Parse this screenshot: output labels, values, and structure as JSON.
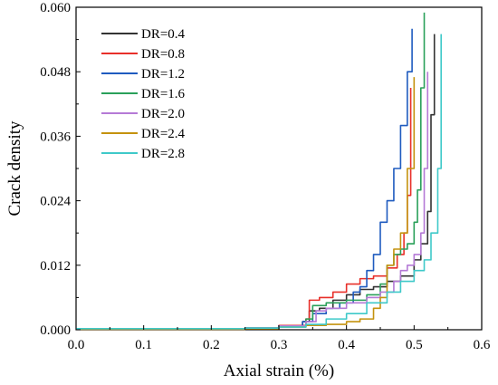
{
  "chart_data": {
    "type": "line",
    "xlabel": "Axial strain (%)",
    "ylabel": "Crack density",
    "xlim": [
      0.0,
      0.6
    ],
    "ylim": [
      0.0,
      0.06
    ],
    "xticks": [
      "0.0",
      "0.1",
      "0.2",
      "0.3",
      "0.4",
      "0.5",
      "0.6"
    ],
    "yticks": [
      "0.000",
      "0.012",
      "0.024",
      "0.036",
      "0.048",
      "0.060"
    ],
    "xtick_values": [
      0.0,
      0.1,
      0.2,
      0.3,
      0.4,
      0.5,
      0.6
    ],
    "ytick_values": [
      0.0,
      0.012,
      0.024,
      0.036,
      0.048,
      0.06
    ],
    "grid": false,
    "legend_position": "top-left",
    "series": [
      {
        "name": "DR=0.4",
        "color": "#333333",
        "x": [
          0.0,
          0.25,
          0.3,
          0.335,
          0.345,
          0.36,
          0.38,
          0.4,
          0.42,
          0.44,
          0.46,
          0.48,
          0.5,
          0.51,
          0.52,
          0.525,
          0.53
        ],
        "y": [
          0.0002,
          0.0003,
          0.0007,
          0.0015,
          0.0035,
          0.004,
          0.0055,
          0.0065,
          0.0075,
          0.008,
          0.009,
          0.01,
          0.013,
          0.016,
          0.022,
          0.04,
          0.055
        ]
      },
      {
        "name": "DR=0.8",
        "color": "#e8302a",
        "x": [
          0.0,
          0.25,
          0.3,
          0.34,
          0.345,
          0.36,
          0.38,
          0.4,
          0.42,
          0.44,
          0.46,
          0.475,
          0.485,
          0.49,
          0.495
        ],
        "y": [
          0.0002,
          0.0003,
          0.0008,
          0.002,
          0.0055,
          0.006,
          0.007,
          0.0085,
          0.0095,
          0.01,
          0.0115,
          0.014,
          0.018,
          0.025,
          0.045
        ]
      },
      {
        "name": "DR=1.2",
        "color": "#1f5bbf",
        "x": [
          0.0,
          0.25,
          0.3,
          0.335,
          0.35,
          0.37,
          0.39,
          0.41,
          0.42,
          0.43,
          0.44,
          0.45,
          0.46,
          0.47,
          0.48,
          0.49,
          0.497
        ],
        "y": [
          0.0002,
          0.0003,
          0.0007,
          0.0015,
          0.003,
          0.004,
          0.005,
          0.007,
          0.008,
          0.011,
          0.014,
          0.02,
          0.024,
          0.03,
          0.038,
          0.048,
          0.056
        ]
      },
      {
        "name": "DR=1.6",
        "color": "#2aa05a",
        "x": [
          0.0,
          0.25,
          0.3,
          0.34,
          0.35,
          0.37,
          0.4,
          0.43,
          0.45,
          0.46,
          0.47,
          0.48,
          0.49,
          0.5,
          0.505,
          0.51,
          0.515
        ],
        "y": [
          0.0002,
          0.0003,
          0.0007,
          0.002,
          0.0045,
          0.005,
          0.0055,
          0.0065,
          0.0085,
          0.012,
          0.014,
          0.015,
          0.016,
          0.02,
          0.026,
          0.045,
          0.059
        ]
      },
      {
        "name": "DR=2.0",
        "color": "#b57ad6",
        "x": [
          0.0,
          0.25,
          0.3,
          0.34,
          0.355,
          0.37,
          0.4,
          0.43,
          0.45,
          0.47,
          0.48,
          0.49,
          0.5,
          0.51,
          0.515,
          0.52
        ],
        "y": [
          0.0002,
          0.0003,
          0.0007,
          0.0015,
          0.0035,
          0.004,
          0.005,
          0.006,
          0.007,
          0.009,
          0.011,
          0.012,
          0.014,
          0.018,
          0.03,
          0.048
        ]
      },
      {
        "name": "DR=2.4",
        "color": "#c4920e",
        "x": [
          0.0,
          0.25,
          0.3,
          0.34,
          0.37,
          0.4,
          0.42,
          0.44,
          0.45,
          0.46,
          0.47,
          0.48,
          0.49,
          0.5
        ],
        "y": [
          0.0001,
          0.0002,
          0.0005,
          0.0008,
          0.001,
          0.0015,
          0.002,
          0.004,
          0.006,
          0.012,
          0.015,
          0.018,
          0.03,
          0.047
        ]
      },
      {
        "name": "DR=2.8",
        "color": "#3fc9c9",
        "x": [
          0.0,
          0.25,
          0.3,
          0.34,
          0.37,
          0.4,
          0.43,
          0.46,
          0.48,
          0.5,
          0.515,
          0.525,
          0.535,
          0.54
        ],
        "y": [
          0.0002,
          0.0003,
          0.0005,
          0.001,
          0.002,
          0.003,
          0.005,
          0.007,
          0.009,
          0.011,
          0.013,
          0.018,
          0.03,
          0.055
        ]
      }
    ]
  }
}
